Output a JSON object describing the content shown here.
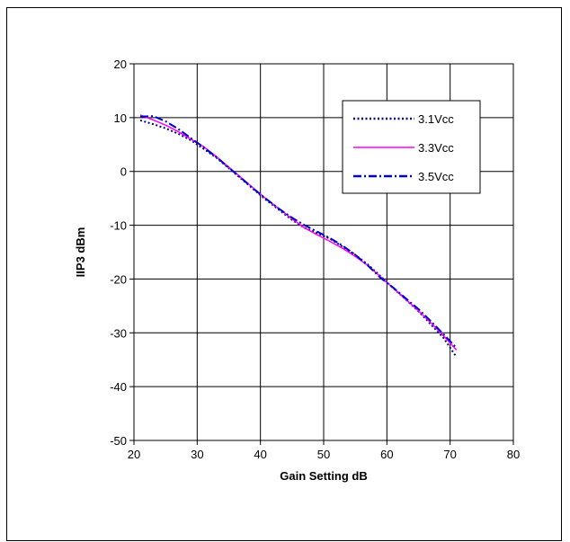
{
  "chart_data": {
    "type": "line",
    "title": "",
    "xlabel": "Gain Setting dB",
    "ylabel": "IIP3 dBm",
    "xlim": [
      20,
      80
    ],
    "ylim": [
      -50,
      20
    ],
    "xticks": [
      20,
      30,
      40,
      50,
      60,
      70,
      80
    ],
    "yticks": [
      20,
      10,
      0,
      -10,
      -20,
      -30,
      -40,
      -50
    ],
    "grid": true,
    "legend_position": "top-right",
    "series": [
      {
        "name": "3.1Vcc",
        "color": "#000080",
        "dash": "dotted",
        "x": [
          21,
          23,
          25,
          27,
          29,
          31,
          33,
          35,
          37,
          39,
          41,
          43,
          45,
          47,
          49,
          51,
          53,
          55,
          57,
          59,
          61,
          63,
          65,
          67,
          69,
          71
        ],
        "y": [
          9.5,
          8.8,
          8.0,
          7.0,
          5.8,
          4.2,
          2.6,
          0.6,
          -1.4,
          -3.4,
          -5.4,
          -7.2,
          -9.0,
          -10.5,
          -11.5,
          -12.5,
          -14.0,
          -15.5,
          -17.3,
          -19.5,
          -21.7,
          -23.8,
          -26.0,
          -28.5,
          -31.0,
          -34.5
        ]
      },
      {
        "name": "3.3Vcc",
        "color": "#ff00ff",
        "dash": "solid",
        "x": [
          21,
          23,
          25,
          27,
          29,
          31,
          33,
          35,
          37,
          39,
          41,
          43,
          45,
          47,
          49,
          51,
          53,
          55,
          57,
          59,
          61,
          63,
          65,
          67,
          69,
          71
        ],
        "y": [
          10.5,
          9.6,
          8.6,
          7.4,
          6.0,
          4.6,
          2.8,
          0.8,
          -1.2,
          -3.2,
          -5.2,
          -7.0,
          -8.8,
          -10.5,
          -11.8,
          -13.0,
          -14.3,
          -15.8,
          -17.5,
          -19.6,
          -21.7,
          -23.8,
          -25.9,
          -28.2,
          -30.6,
          -33.2
        ]
      },
      {
        "name": "3.5Vcc",
        "color": "#0000cd",
        "dash": "dashdot",
        "x": [
          21,
          23,
          25,
          27,
          29,
          31,
          33,
          35,
          37,
          39,
          41,
          43,
          45,
          47,
          49,
          51,
          53,
          55,
          57,
          59,
          61,
          63,
          65,
          67,
          69,
          71
        ],
        "y": [
          10.2,
          10.3,
          9.3,
          7.9,
          6.2,
          4.5,
          2.7,
          0.7,
          -1.3,
          -3.3,
          -5.2,
          -7.0,
          -8.6,
          -10.0,
          -11.2,
          -12.4,
          -13.8,
          -15.5,
          -17.5,
          -19.8,
          -21.6,
          -23.6,
          -25.6,
          -27.9,
          -30.3,
          -32.8
        ]
      }
    ]
  }
}
